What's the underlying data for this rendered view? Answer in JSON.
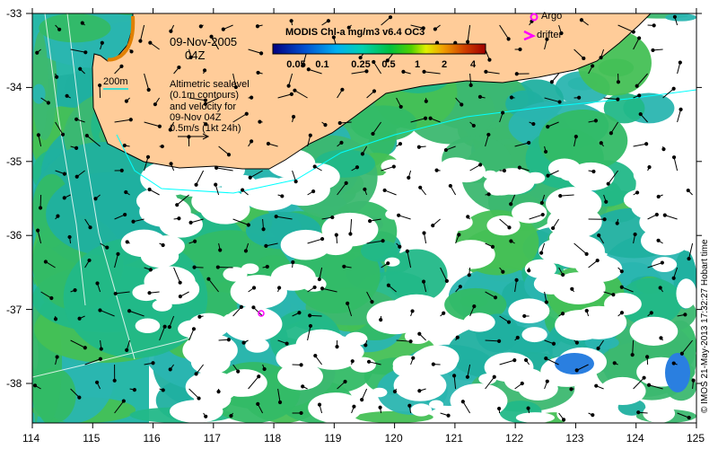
{
  "map": {
    "date": "09-Nov-2005",
    "time": "04Z",
    "colorbar": {
      "title": "MODIS Chl-a mg/m3 v6.4 OC3",
      "ticks": [
        "0.05",
        "0.1",
        "0.25",
        "0.5",
        "1",
        "2",
        "4"
      ],
      "colors": [
        "#000080",
        "#0050d0",
        "#00b0f0",
        "#00d0b0",
        "#00c040",
        "#50d000",
        "#e0f000",
        "#f0a000",
        "#d04000",
        "#a00000"
      ]
    },
    "contour_label": "200m",
    "legend_text": [
      "Altimetric sealevel",
      "(0.1m contours)",
      "and velocity for",
      "09-Nov 04Z",
      "0.5m/s (1kt 24h)"
    ],
    "markers": {
      "argo": "Argo",
      "drifter": "drifter",
      "marker_color": "#ff00ff"
    },
    "x_ticks": [
      "114",
      "115",
      "116",
      "117",
      "118",
      "119",
      "120",
      "121",
      "122",
      "123",
      "124",
      "125"
    ],
    "y_ticks": [
      "-33",
      "-34",
      "-35",
      "-36",
      "-37",
      "-38"
    ],
    "credit": "© IMOS 21-May-2013 17:32:27 Hobart time",
    "land_color": "#ffcc99"
  }
}
